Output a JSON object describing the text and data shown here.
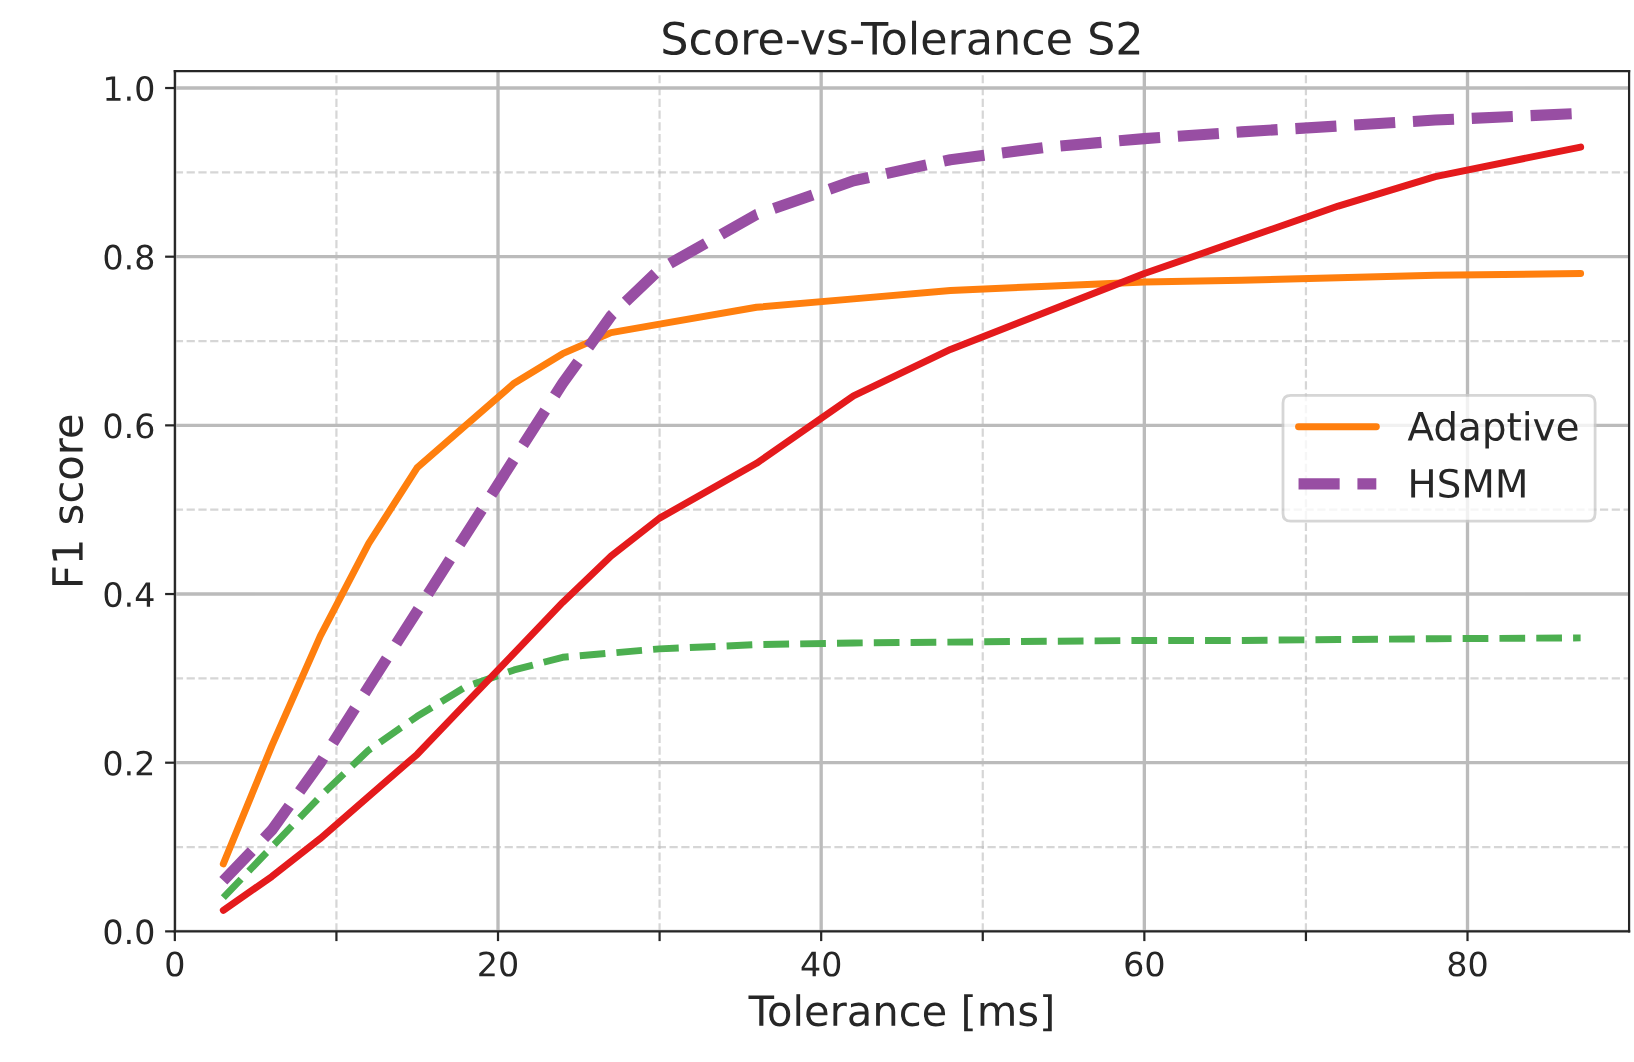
{
  "chart_data": {
    "type": "line",
    "title": "Score-vs-Tolerance S2",
    "xlabel": "Tolerance [ms]",
    "ylabel": "F1 score",
    "x": [
      3,
      6,
      9,
      12,
      15,
      18,
      21,
      24,
      27,
      30,
      36,
      42,
      48,
      54,
      60,
      66,
      72,
      78,
      87
    ],
    "series": [
      {
        "name": "Adaptive",
        "color": "#ff7f0e",
        "line_style": "solid",
        "values": [
          0.08,
          0.22,
          0.35,
          0.46,
          0.55,
          0.6,
          0.65,
          0.685,
          0.71,
          0.72,
          0.74,
          0.75,
          0.76,
          0.765,
          0.77,
          0.772,
          0.775,
          0.778,
          0.78
        ]
      },
      {
        "color": "#4caf50",
        "line_style": "dashed",
        "values": [
          0.04,
          0.1,
          0.16,
          0.215,
          0.255,
          0.29,
          0.31,
          0.325,
          0.33,
          0.335,
          0.34,
          0.342,
          0.343,
          0.344,
          0.345,
          0.345,
          0.346,
          0.347,
          0.348
        ]
      },
      {
        "name": "HSMM",
        "color": "#984ea3",
        "line_style": "dashed",
        "values": [
          0.06,
          0.12,
          0.2,
          0.29,
          0.38,
          0.47,
          0.56,
          0.65,
          0.73,
          0.785,
          0.85,
          0.89,
          0.915,
          0.93,
          0.94,
          0.948,
          0.955,
          0.962,
          0.97
        ]
      },
      {
        "color": "#e41a1c",
        "line_style": "solid",
        "values": [
          0.025,
          0.065,
          0.11,
          0.16,
          0.21,
          0.27,
          0.33,
          0.39,
          0.445,
          0.49,
          0.555,
          0.635,
          0.69,
          0.735,
          0.78,
          0.82,
          0.86,
          0.895,
          0.93
        ]
      }
    ],
    "xlim": [
      0,
      90
    ],
    "ylim": [
      0,
      1.02
    ],
    "xticks": [
      0,
      {
        "value": 10,
        "label": null
      },
      20,
      {
        "value": 30,
        "label": null
      },
      40,
      {
        "value": 50,
        "label": null
      },
      60,
      {
        "value": 70,
        "label": null
      },
      80
    ],
    "yticks": [
      {
        "value": 0,
        "label": "0.0"
      },
      0.2,
      0.4,
      0.6,
      0.8,
      {
        "value": 1,
        "label": "1.0"
      }
    ],
    "grid": true,
    "legend": "right",
    "marker": "none"
  }
}
